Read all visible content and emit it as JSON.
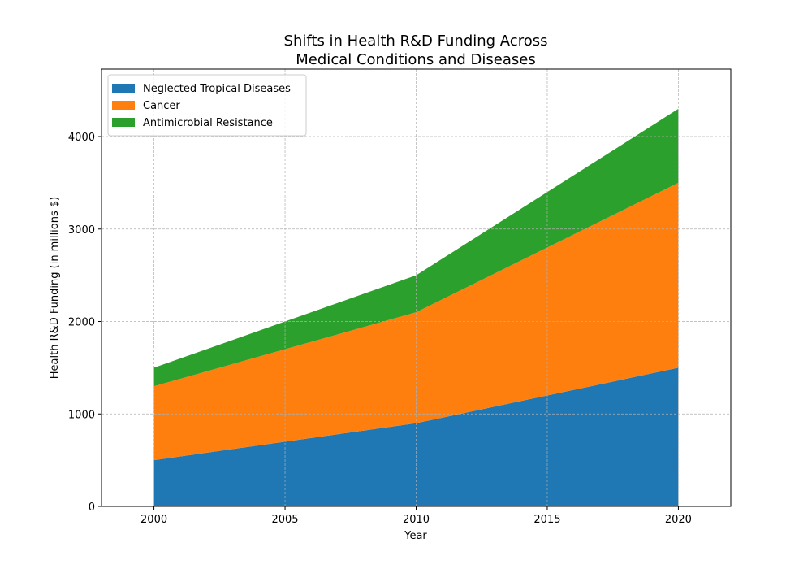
{
  "chart_data": {
    "type": "area",
    "stacked": true,
    "title_lines": [
      "Shifts in Health R&D Funding Across",
      "Medical Conditions and Diseases"
    ],
    "xlabel": "Year",
    "ylabel": "Health R&D Funding (in millions $)",
    "x": [
      2000,
      2005,
      2010,
      2015,
      2020
    ],
    "xlim": [
      1998,
      2022
    ],
    "ylim": [
      0,
      4730
    ],
    "xticks": [
      2000,
      2005,
      2010,
      2015,
      2020
    ],
    "yticks": [
      0,
      1000,
      2000,
      3000,
      4000
    ],
    "grid": true,
    "legend_position": "top-left",
    "series": [
      {
        "name": "Neglected Tropical Diseases",
        "values": [
          500,
          700,
          900,
          1200,
          1500
        ],
        "color": "#1f77b4"
      },
      {
        "name": "Cancer",
        "values": [
          800,
          1000,
          1200,
          1600,
          2000
        ],
        "color": "#ff7f0e"
      },
      {
        "name": "Antimicrobial Resistance",
        "values": [
          200,
          300,
          400,
          600,
          800
        ],
        "color": "#2ca02c"
      }
    ]
  }
}
